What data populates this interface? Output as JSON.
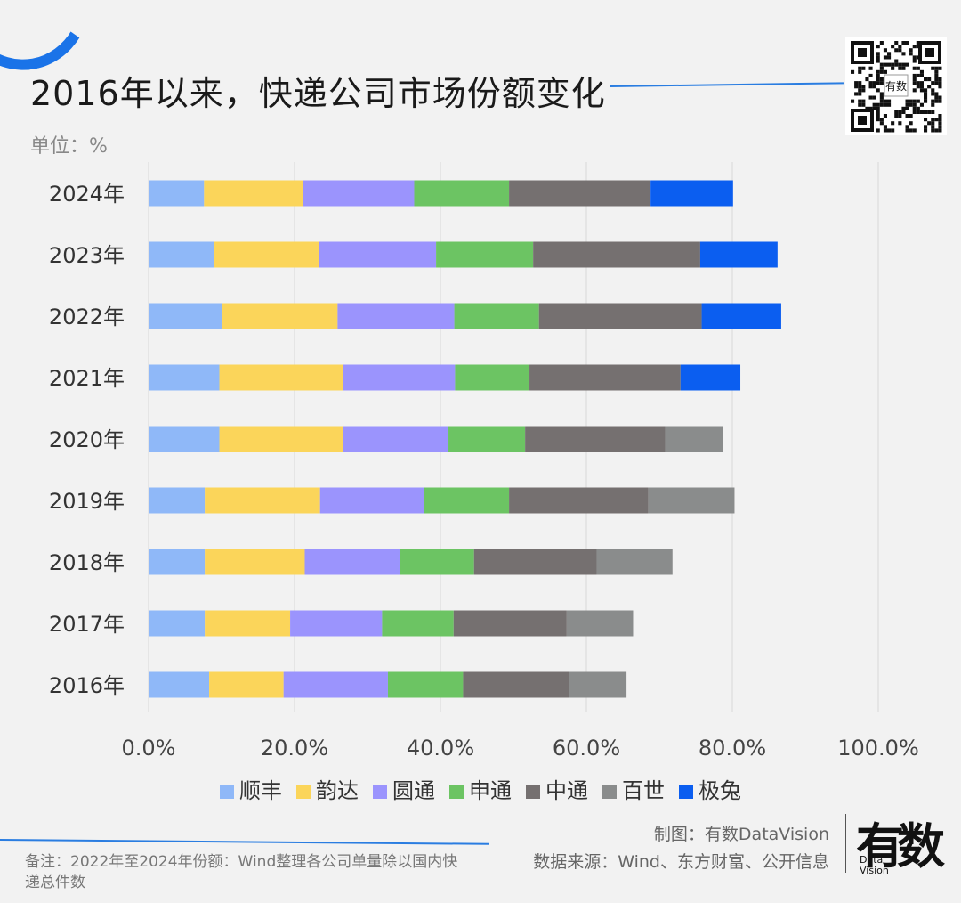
{
  "header": {
    "title": "2016年以来，快递公司市场份额变化",
    "unit": "单位：%"
  },
  "footer": {
    "note": "备注：2022年至2024年份额：Wind整理各公司单量除以国内快递总件数",
    "made_by": "制图：有数DataVision",
    "source": "数据来源：Wind、东方财富、公开信息",
    "logo_char_1": "有",
    "logo_char_2": "数",
    "logo_sub": "Data Vision"
  },
  "qr": {
    "center_label": "有数"
  },
  "chart_data": {
    "type": "bar",
    "orientation": "horizontal",
    "stacked": true,
    "categories": [
      "2024年",
      "2023年",
      "2022年",
      "2021年",
      "2020年",
      "2019年",
      "2018年",
      "2017年",
      "2016年"
    ],
    "series": [
      {
        "name": "顺丰",
        "color": "#8fb8f8",
        "values": [
          7.6,
          9.0,
          10.0,
          9.7,
          9.7,
          7.7,
          7.7,
          7.7,
          8.3
        ]
      },
      {
        "name": "韵达",
        "color": "#fbd55a",
        "values": [
          13.5,
          14.3,
          15.9,
          17.0,
          17.0,
          15.8,
          13.7,
          11.7,
          10.2
        ]
      },
      {
        "name": "圆通",
        "color": "#9b94fd",
        "values": [
          15.3,
          16.1,
          16.0,
          15.3,
          14.4,
          14.3,
          13.1,
          12.6,
          14.3
        ]
      },
      {
        "name": "申通",
        "color": "#6cc463",
        "values": [
          13.0,
          13.3,
          11.6,
          10.2,
          10.5,
          11.6,
          10.1,
          9.8,
          10.3
        ]
      },
      {
        "name": "中通",
        "color": "#757070",
        "values": [
          19.4,
          22.9,
          22.3,
          20.7,
          19.2,
          19.1,
          16.8,
          15.5,
          14.5
        ]
      },
      {
        "name": "百世",
        "color": "#8a8c8c",
        "values": [
          0,
          0,
          0,
          0,
          7.9,
          11.8,
          10.4,
          9.1,
          7.9
        ]
      },
      {
        "name": "极兔",
        "color": "#0b5ef0",
        "values": [
          11.3,
          10.6,
          10.9,
          8.2,
          0,
          0,
          0,
          0,
          0
        ]
      }
    ],
    "xlim": [
      0,
      100
    ],
    "xticks": [
      "0.0%",
      "20.0%",
      "40.0%",
      "60.0%",
      "80.0%",
      "100.0%"
    ],
    "grid": true,
    "legend": "bottom"
  }
}
